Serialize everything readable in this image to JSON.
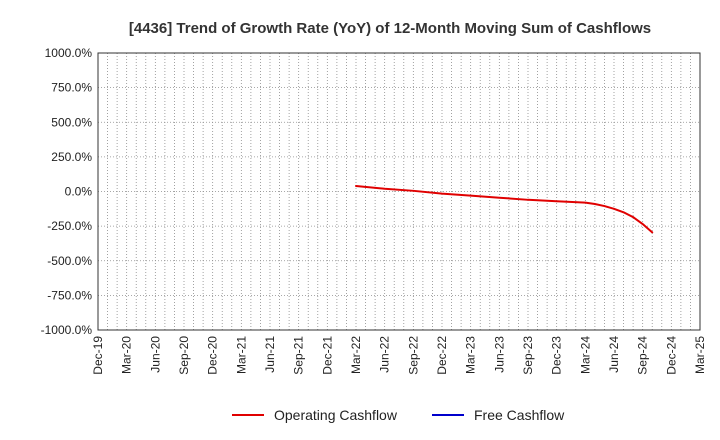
{
  "chart_data": {
    "type": "line",
    "title": "[4436]  Trend of Growth Rate (YoY) of 12-Month Moving Sum of Cashflows",
    "xlabel": "",
    "ylabel": "",
    "ylim": [
      -1000,
      1000
    ],
    "y_ticks": [
      1000,
      750,
      500,
      250,
      0,
      -250,
      -500,
      -750,
      -1000
    ],
    "y_tick_labels": [
      "1000.0%",
      "750.0%",
      "500.0%",
      "250.0%",
      "0.0%",
      "-250.0%",
      "-500.0%",
      "-750.0%",
      "-1000.0%"
    ],
    "x_range": [
      "2019-12",
      "2025-03"
    ],
    "x_tick_labels": [
      "Dec-19",
      "Mar-20",
      "Jun-20",
      "Sep-20",
      "Dec-20",
      "Mar-21",
      "Jun-21",
      "Sep-21",
      "Dec-21",
      "Mar-22",
      "Jun-22",
      "Sep-22",
      "Dec-22",
      "Mar-23",
      "Jun-23",
      "Sep-23",
      "Dec-23",
      "Mar-24",
      "Jun-24",
      "Sep-24",
      "Dec-24",
      "Mar-25"
    ],
    "grid": true,
    "legend_position": "bottom",
    "series": [
      {
        "name": "Operating Cashflow",
        "color": "#e00000",
        "points": [
          {
            "x": "2022-03",
            "y": 40
          },
          {
            "x": "2022-06",
            "y": 20
          },
          {
            "x": "2022-09",
            "y": 5
          },
          {
            "x": "2022-12",
            "y": -15
          },
          {
            "x": "2023-03",
            "y": -30
          },
          {
            "x": "2023-06",
            "y": -45
          },
          {
            "x": "2023-09",
            "y": -60
          },
          {
            "x": "2023-12",
            "y": -70
          },
          {
            "x": "2024-03",
            "y": -80
          },
          {
            "x": "2024-04",
            "y": -90
          },
          {
            "x": "2024-05",
            "y": -105
          },
          {
            "x": "2024-06",
            "y": -125
          },
          {
            "x": "2024-07",
            "y": -150
          },
          {
            "x": "2024-08",
            "y": -185
          },
          {
            "x": "2024-09",
            "y": -235
          },
          {
            "x": "2024-10",
            "y": -295
          }
        ]
      },
      {
        "name": "Free Cashflow",
        "color": "#0000cc",
        "points": []
      }
    ]
  }
}
